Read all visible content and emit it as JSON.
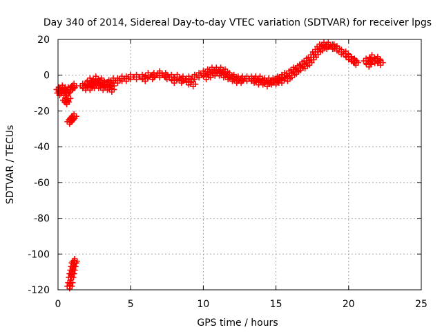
{
  "chart_data": {
    "type": "scatter",
    "title": "Day 340 of 2014, Sidereal Day-to-day VTEC variation (SDTVAR) for receiver lpgs",
    "xlabel": "GPS time / hours",
    "ylabel": "SDTVAR / TECUs",
    "xlim": [
      0,
      25
    ],
    "ylim": [
      -120,
      20
    ],
    "xticks": [
      0,
      5,
      10,
      15,
      20,
      25
    ],
    "yticks": [
      -120,
      -100,
      -80,
      -60,
      -40,
      -20,
      0,
      20
    ],
    "grid": true,
    "series": [
      {
        "name": "SDTVAR",
        "color": "#ff0000",
        "marker": "plus",
        "points": [
          [
            0.05,
            -8
          ],
          [
            0.1,
            -10
          ],
          [
            0.2,
            -9
          ],
          [
            0.3,
            -7
          ],
          [
            0.4,
            -10
          ],
          [
            0.5,
            -8
          ],
          [
            0.6,
            -10
          ],
          [
            0.7,
            -8
          ],
          [
            0.85,
            -8
          ],
          [
            1.0,
            -7
          ],
          [
            1.1,
            -6
          ],
          [
            0.5,
            -14
          ],
          [
            0.6,
            -15
          ],
          [
            0.7,
            -13
          ],
          [
            0.8,
            -26
          ],
          [
            0.9,
            -25
          ],
          [
            1.0,
            -24
          ],
          [
            1.1,
            -23
          ],
          [
            0.8,
            -118
          ],
          [
            0.85,
            -116
          ],
          [
            0.9,
            -113
          ],
          [
            0.95,
            -111
          ],
          [
            1.0,
            -109
          ],
          [
            1.05,
            -107
          ],
          [
            1.1,
            -105
          ],
          [
            1.15,
            -104
          ],
          [
            1.7,
            -6
          ],
          [
            2.0,
            -5
          ],
          [
            2.3,
            -5
          ],
          [
            2.6,
            -4
          ],
          [
            2.9,
            -4
          ],
          [
            3.2,
            -5
          ],
          [
            3.5,
            -4
          ],
          [
            3.8,
            -3
          ],
          [
            4.1,
            -3
          ],
          [
            4.4,
            -2
          ],
          [
            4.7,
            -2
          ],
          [
            1.9,
            -7
          ],
          [
            2.2,
            -7
          ],
          [
            2.5,
            -6
          ],
          [
            2.8,
            -6
          ],
          [
            3.1,
            -7
          ],
          [
            3.4,
            -7
          ],
          [
            3.7,
            -6
          ],
          [
            2.2,
            -3
          ],
          [
            2.6,
            -2
          ],
          [
            3.0,
            -3
          ],
          [
            3.4,
            -5
          ],
          [
            3.7,
            -8
          ],
          [
            5.0,
            -1
          ],
          [
            5.4,
            -1
          ],
          [
            5.8,
            -1
          ],
          [
            6.2,
            0
          ],
          [
            6.6,
            0
          ],
          [
            7.0,
            0
          ],
          [
            7.4,
            0
          ],
          [
            7.8,
            -1
          ],
          [
            8.2,
            -1
          ],
          [
            8.6,
            -2
          ],
          [
            9.0,
            -2
          ],
          [
            9.4,
            -1
          ],
          [
            9.7,
            0
          ],
          [
            6.0,
            -2
          ],
          [
            6.5,
            -1
          ],
          [
            7.0,
            1
          ],
          [
            7.5,
            -1
          ],
          [
            8.0,
            -3
          ],
          [
            8.5,
            -3
          ],
          [
            9.0,
            -4
          ],
          [
            9.3,
            -5
          ],
          [
            10.0,
            1
          ],
          [
            10.3,
            2
          ],
          [
            10.6,
            3
          ],
          [
            10.9,
            3
          ],
          [
            11.2,
            3
          ],
          [
            11.5,
            2
          ],
          [
            11.8,
            0
          ],
          [
            12.1,
            -1
          ],
          [
            12.4,
            -2
          ],
          [
            12.7,
            -2
          ],
          [
            13.0,
            -2
          ],
          [
            10.2,
            -1
          ],
          [
            10.5,
            0
          ],
          [
            10.8,
            1
          ],
          [
            11.1,
            1
          ],
          [
            11.4,
            0
          ],
          [
            11.7,
            -1
          ],
          [
            12.0,
            -2
          ],
          [
            12.3,
            -3
          ],
          [
            12.6,
            -3
          ],
          [
            13.3,
            -2
          ],
          [
            13.6,
            -2
          ],
          [
            13.9,
            -2
          ],
          [
            14.2,
            -3
          ],
          [
            14.5,
            -3
          ],
          [
            14.8,
            -3
          ],
          [
            15.1,
            -2
          ],
          [
            15.4,
            -1
          ],
          [
            13.5,
            -3
          ],
          [
            13.8,
            -4
          ],
          [
            14.1,
            -4
          ],
          [
            14.4,
            -5
          ],
          [
            14.7,
            -4
          ],
          [
            15.0,
            -4
          ],
          [
            15.2,
            -3
          ],
          [
            15.4,
            -3
          ],
          [
            15.6,
            0
          ],
          [
            15.9,
            1
          ],
          [
            16.2,
            3
          ],
          [
            16.5,
            4
          ],
          [
            16.8,
            6
          ],
          [
            17.1,
            8
          ],
          [
            17.4,
            10
          ],
          [
            17.7,
            13
          ],
          [
            18.0,
            16
          ],
          [
            18.3,
            17
          ],
          [
            18.6,
            17
          ],
          [
            18.9,
            16
          ],
          [
            15.8,
            -2
          ],
          [
            16.1,
            0
          ],
          [
            16.4,
            2
          ],
          [
            16.7,
            4
          ],
          [
            17.0,
            5
          ],
          [
            17.3,
            7
          ],
          [
            17.6,
            10
          ],
          [
            17.9,
            13
          ],
          [
            18.2,
            15
          ],
          [
            18.5,
            16
          ],
          [
            19.0,
            16
          ],
          [
            19.2,
            15
          ],
          [
            19.5,
            13
          ],
          [
            19.8,
            12
          ],
          [
            20.0,
            10
          ],
          [
            20.2,
            9
          ],
          [
            20.4,
            8
          ],
          [
            20.5,
            7
          ],
          [
            21.2,
            8
          ],
          [
            21.5,
            8
          ],
          [
            21.8,
            8
          ],
          [
            22.0,
            8
          ],
          [
            22.2,
            7
          ],
          [
            21.6,
            10
          ],
          [
            22.0,
            9
          ],
          [
            21.4,
            6
          ]
        ]
      }
    ]
  }
}
